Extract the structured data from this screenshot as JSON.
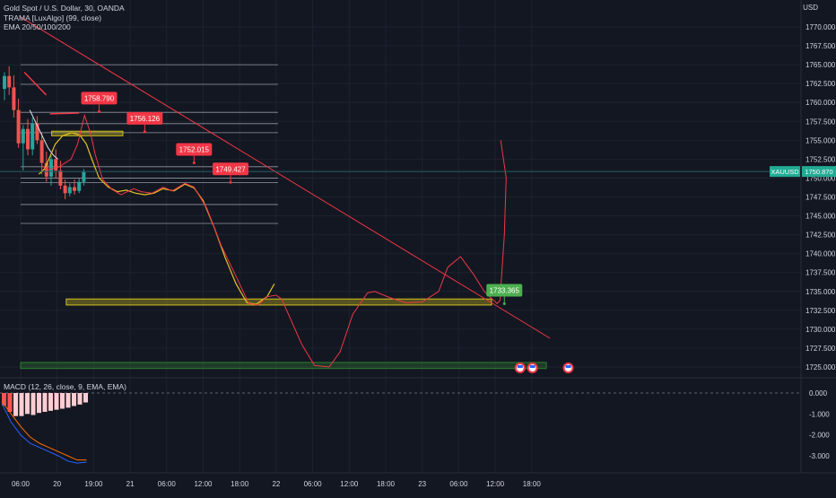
{
  "header": {
    "symbol_line": "Gold Spot / U.S. Dollar, 30, OANDA",
    "indicator_1": "TRAMA [LuxAlgo] (99, close)",
    "indicator_2": "EMA 20/50/100/200",
    "currency": "USD"
  },
  "macd": {
    "label": "MACD (12, 26, close, 9, EMA, EMA)",
    "ticks": [
      "0.000",
      "-1.000",
      "-2.000",
      "-3.000"
    ],
    "ylim": [
      -3.5,
      0.7
    ],
    "histogram": [
      -0.6,
      -0.9,
      -1.1,
      -1.1,
      -1.0,
      -1.05,
      -0.95,
      -0.9,
      -0.85,
      -0.8,
      -0.75,
      -0.7,
      -0.62,
      -0.55,
      -0.45
    ],
    "macd_line": [
      -0.5,
      -1.4,
      -2.0,
      -2.4,
      -2.6,
      -2.8,
      -3.0,
      -3.25,
      -3.35,
      -3.3
    ],
    "signal_line": [
      -0.4,
      -1.0,
      -1.6,
      -2.1,
      -2.4,
      -2.6,
      -2.8,
      -3.0,
      -3.2,
      -3.2
    ]
  },
  "chart_data": {
    "type": "line",
    "title": "Gold Spot / U.S. Dollar, 30, OANDA",
    "xlabel": "",
    "ylabel": "",
    "ylim": [
      1722.5,
      1772.5
    ],
    "y_ticks": [
      "1770.000",
      "1767.500",
      "1765.000",
      "1762.500",
      "1760.000",
      "1757.500",
      "1755.000",
      "1752.500",
      "1750.000",
      "1747.500",
      "1745.000",
      "1742.500",
      "1740.000",
      "1737.500",
      "1735.000",
      "1732.500",
      "1730.000",
      "1727.500",
      "1725.000"
    ],
    "x_ticks": [
      {
        "label": "06:00",
        "t": 0
      },
      {
        "label": "20",
        "t": 1
      },
      {
        "label": "19:00",
        "t": 2
      },
      {
        "label": "21",
        "t": 3
      },
      {
        "label": "06:00",
        "t": 4
      },
      {
        "label": "12:00",
        "t": 5
      },
      {
        "label": "18:00",
        "t": 6
      },
      {
        "label": "22",
        "t": 7
      },
      {
        "label": "06:00",
        "t": 8
      },
      {
        "label": "12:00",
        "t": 9
      },
      {
        "label": "18:00",
        "t": 10
      },
      {
        "label": "23",
        "t": 11
      },
      {
        "label": "06:00",
        "t": 12
      },
      {
        "label": "12:00",
        "t": 13
      },
      {
        "label": "18:00",
        "t": 14
      }
    ],
    "current_price": {
      "label": "XAUUSD",
      "value": "1750.870",
      "price": 1750.87
    },
    "candles": [
      {
        "o": 1761.8,
        "h": 1764.0,
        "l": 1760.3,
        "c": 1763.5
      },
      {
        "o": 1763.5,
        "h": 1764.8,
        "l": 1761.0,
        "c": 1762.0
      },
      {
        "o": 1762.0,
        "h": 1763.6,
        "l": 1758.0,
        "c": 1759.0
      },
      {
        "o": 1759.0,
        "h": 1760.5,
        "l": 1754.0,
        "c": 1754.6
      },
      {
        "o": 1754.6,
        "h": 1757.0,
        "l": 1751.0,
        "c": 1756.5
      },
      {
        "o": 1756.5,
        "h": 1757.8,
        "l": 1753.0,
        "c": 1753.8
      },
      {
        "o": 1753.8,
        "h": 1758.0,
        "l": 1753.0,
        "c": 1757.2
      },
      {
        "o": 1757.2,
        "h": 1758.2,
        "l": 1754.5,
        "c": 1755.0
      },
      {
        "o": 1755.0,
        "h": 1756.0,
        "l": 1750.5,
        "c": 1752.0
      },
      {
        "o": 1752.0,
        "h": 1753.5,
        "l": 1749.5,
        "c": 1750.2
      },
      {
        "o": 1750.2,
        "h": 1753.0,
        "l": 1749.0,
        "c": 1752.5
      },
      {
        "o": 1752.5,
        "h": 1753.8,
        "l": 1750.0,
        "c": 1751.0
      },
      {
        "o": 1751.0,
        "h": 1752.3,
        "l": 1748.5,
        "c": 1749.0
      },
      {
        "o": 1749.0,
        "h": 1749.8,
        "l": 1747.2,
        "c": 1748.0
      },
      {
        "o": 1748.0,
        "h": 1749.3,
        "l": 1747.6,
        "c": 1748.8
      },
      {
        "o": 1748.8,
        "h": 1749.8,
        "l": 1747.8,
        "c": 1748.3
      },
      {
        "o": 1748.3,
        "h": 1750.0,
        "l": 1748.0,
        "c": 1749.5
      },
      {
        "o": 1749.5,
        "h": 1751.2,
        "l": 1749.0,
        "c": 1750.8
      }
    ],
    "projection_path": [
      [
        9.38,
        1751.6
      ],
      [
        9.55,
        1751.1
      ],
      [
        9.82,
        1751.4
      ],
      [
        10.18,
        1752.5
      ],
      [
        10.36,
        1754.5
      ],
      [
        10.55,
        1758.3
      ],
      [
        10.71,
        1756.0
      ],
      [
        10.85,
        1753.0
      ],
      [
        11.05,
        1749.8
      ],
      [
        11.3,
        1748.5
      ],
      [
        11.55,
        1747.8
      ],
      [
        11.9,
        1748.6
      ],
      [
        12.1,
        1748.2
      ],
      [
        12.4,
        1748.0
      ],
      [
        12.7,
        1748.8
      ],
      [
        12.95,
        1748.3
      ],
      [
        13.3,
        1749.3
      ],
      [
        13.55,
        1748.8
      ],
      [
        13.9,
        1746.0
      ],
      [
        14.3,
        1741.0
      ],
      [
        14.7,
        1737.0
      ],
      [
        15.05,
        1733.4
      ],
      [
        15.3,
        1733.2
      ],
      [
        15.55,
        1734.3
      ],
      [
        15.8,
        1734.5
      ],
      [
        15.95,
        1734.0
      ],
      [
        16.5,
        1728.0
      ],
      [
        16.85,
        1725.2
      ],
      [
        17.25,
        1725.0
      ],
      [
        17.55,
        1727.0
      ],
      [
        17.9,
        1732.0
      ],
      [
        18.3,
        1734.8
      ],
      [
        18.5,
        1735.0
      ],
      [
        18.9,
        1734.2
      ],
      [
        19.35,
        1733.5
      ],
      [
        19.8,
        1733.6
      ],
      [
        20.25,
        1735.0
      ],
      [
        20.5,
        1738.2
      ],
      [
        20.85,
        1739.6
      ],
      [
        21.2,
        1737.3
      ],
      [
        21.5,
        1735.0
      ],
      [
        21.65,
        1734.3
      ],
      [
        21.85,
        1733.4
      ],
      [
        21.93,
        1733.8
      ],
      [
        22.05,
        1742.5
      ],
      [
        22.1,
        1750.0
      ],
      [
        21.95,
        1755.0
      ]
    ],
    "trama_path": [
      [
        9.3,
        1750.5
      ],
      [
        9.45,
        1751.2
      ],
      [
        9.6,
        1752.8
      ],
      [
        9.75,
        1754.5
      ],
      [
        9.95,
        1755.6
      ],
      [
        10.2,
        1756.0
      ],
      [
        10.42,
        1755.7
      ],
      [
        10.6,
        1754.5
      ],
      [
        10.75,
        1752.5
      ],
      [
        10.95,
        1750.0
      ],
      [
        11.2,
        1748.8
      ],
      [
        11.45,
        1748.2
      ],
      [
        11.7,
        1748.4
      ],
      [
        11.95,
        1748.0
      ],
      [
        12.2,
        1747.8
      ],
      [
        12.45,
        1748.0
      ],
      [
        12.7,
        1748.6
      ],
      [
        13.0,
        1748.3
      ],
      [
        13.3,
        1749.2
      ],
      [
        13.55,
        1748.7
      ],
      [
        13.8,
        1747.0
      ],
      [
        14.1,
        1743.5
      ],
      [
        14.4,
        1739.5
      ],
      [
        14.7,
        1736.0
      ],
      [
        15.0,
        1733.5
      ],
      [
        15.25,
        1733.3
      ],
      [
        15.55,
        1734.3
      ],
      [
        15.75,
        1736.0
      ]
    ],
    "ema_white": [
      [
        9.05,
        1759.0
      ],
      [
        9.2,
        1757.5
      ],
      [
        9.4,
        1755.5
      ],
      [
        9.55,
        1754.0
      ],
      [
        9.7,
        1753.0
      ],
      [
        9.82,
        1752.5
      ]
    ],
    "trendline": [
      [
        8.8,
        1771.3
      ],
      [
        23.3,
        1728.8
      ]
    ],
    "horizontal_levels": [
      {
        "price": 1765.0,
        "x0": 8.8,
        "x1": 15.85
      },
      {
        "price": 1762.4,
        "x0": 8.8,
        "x1": 15.85
      },
      {
        "price": 1758.7,
        "x0": 8.8,
        "x1": 15.85
      },
      {
        "price": 1757.2,
        "x0": 8.8,
        "x1": 15.85
      },
      {
        "price": 1756.0,
        "x0": 8.8,
        "x1": 15.85
      },
      {
        "price": 1751.5,
        "x0": 8.8,
        "x1": 15.85
      },
      {
        "price": 1750.0,
        "x0": 8.8,
        "x1": 15.85
      },
      {
        "price": 1749.4,
        "x0": 8.8,
        "x1": 15.85
      },
      {
        "price": 1746.5,
        "x0": 8.8,
        "x1": 15.85
      },
      {
        "price": 1744.0,
        "x0": 8.8,
        "x1": 15.85
      }
    ],
    "zones": [
      {
        "y0": 1755.6,
        "y1": 1756.2,
        "x0": 9.65,
        "x1": 11.6,
        "color": "#d4c21e"
      },
      {
        "y0": 1733.2,
        "y1": 1734.0,
        "x0": 10.05,
        "x1": 21.7,
        "color": "#d4c21e"
      },
      {
        "y0": 1724.8,
        "y1": 1725.6,
        "x0": 8.8,
        "x1": 23.2,
        "color": "#2e7d32"
      }
    ],
    "red_segments": [
      [
        [
          8.9,
          1764.0
        ],
        [
          9.3,
          1762.0
        ],
        [
          9.5,
          1761.0
        ]
      ],
      [
        [
          9.6,
          1758.5
        ],
        [
          10.4,
          1758.6
        ]
      ]
    ],
    "callouts": [
      {
        "text": "1758.790",
        "price": 1758.79,
        "t": 10.95,
        "color": "#f23645"
      },
      {
        "text": "1756.126",
        "price": 1756.126,
        "t": 12.2,
        "color": "#f23645"
      },
      {
        "text": "1752.015",
        "price": 1752.015,
        "t": 13.55,
        "color": "#f23645"
      },
      {
        "text": "1749.427",
        "price": 1749.427,
        "t": 14.55,
        "color": "#f23645"
      },
      {
        "text": "1733.365",
        "price": 1733.365,
        "t": 22.05,
        "color": "#4caf50"
      }
    ],
    "event_flags": [
      22.48,
      22.82,
      23.8
    ]
  }
}
